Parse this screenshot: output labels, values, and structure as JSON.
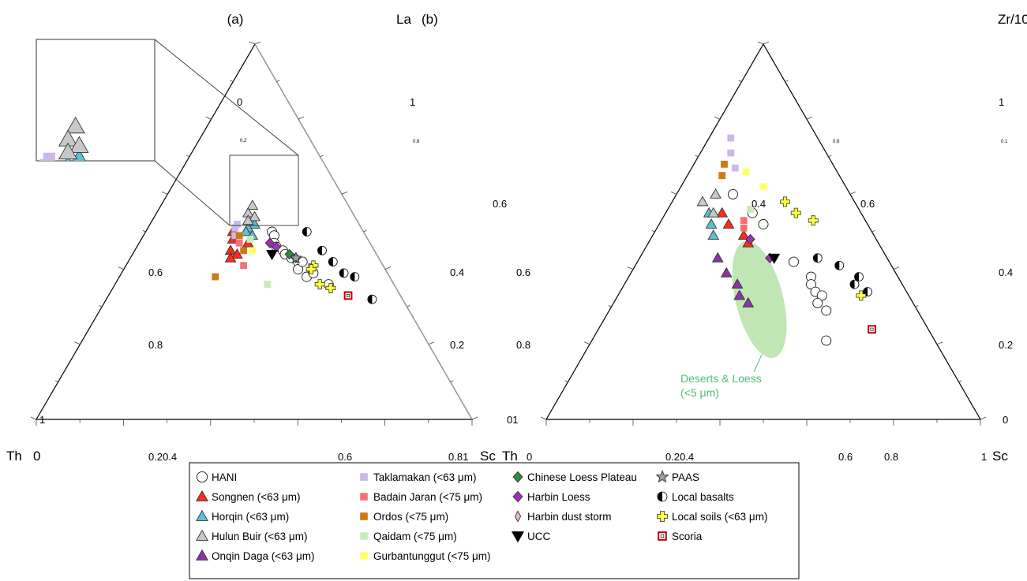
{
  "chart_data": [
    {
      "type": "scatter",
      "panel_label": "(a)",
      "ternary_axes": [
        "La",
        "Th",
        "Sc"
      ],
      "vertex_labels": {
        "top": "La",
        "left": "Th",
        "right": "Sc"
      },
      "tick_labels": {
        "bottom": [
          "0",
          "0.20.4",
          "0.6",
          "0.81"
        ],
        "left_edge": [
          "0",
          "0.6",
          "0.8",
          "1"
        ],
        "right_edge": [
          "1",
          "0.6",
          "0.4",
          "0.2"
        ],
        "small_marks": [
          "0.2",
          "0.8"
        ]
      },
      "inset": "zoom of the central cluster",
      "series": [
        {
          "name": "HANI",
          "points": [
            [
              0.5,
              0.21,
              0.29
            ],
            [
              0.49,
              0.21,
              0.3
            ],
            [
              0.47,
              0.22,
              0.31
            ],
            [
              0.46,
              0.22,
              0.32
            ],
            [
              0.45,
              0.21,
              0.34
            ],
            [
              0.44,
              0.21,
              0.35
            ],
            [
              0.43,
              0.2,
              0.37
            ],
            [
              0.42,
              0.19,
              0.39
            ],
            [
              0.4,
              0.2,
              0.4
            ],
            [
              0.38,
              0.19,
              0.43
            ],
            [
              0.36,
              0.15,
              0.49
            ],
            [
              0.42,
              0.18,
              0.4
            ],
            [
              0.39,
              0.17,
              0.44
            ]
          ]
        },
        {
          "name": "Songnen (<63 μm)",
          "points": [
            [
              0.5,
              0.3,
              0.2
            ],
            [
              0.48,
              0.31,
              0.21
            ],
            [
              0.45,
              0.33,
              0.22
            ],
            [
              0.44,
              0.32,
              0.24
            ],
            [
              0.43,
              0.34,
              0.23
            ],
            [
              0.47,
              0.28,
              0.25
            ]
          ]
        },
        {
          "name": "Horqin (<63 μm)",
          "points": [
            [
              0.52,
              0.24,
              0.24
            ],
            [
              0.51,
              0.26,
              0.23
            ],
            [
              0.5,
              0.27,
              0.23
            ],
            [
              0.49,
              0.26,
              0.25
            ]
          ]
        },
        {
          "name": "Hulun Buir (<63 μm)",
          "points": [
            [
              0.57,
              0.22,
              0.21
            ],
            [
              0.55,
              0.24,
              0.21
            ],
            [
              0.54,
              0.23,
              0.23
            ],
            [
              0.53,
              0.25,
              0.22
            ]
          ]
        },
        {
          "name": "Taklamakan (<63 μm)",
          "points": [
            [
              0.52,
              0.28,
              0.2
            ],
            [
              0.51,
              0.29,
              0.2
            ],
            [
              0.49,
              0.3,
              0.21
            ]
          ]
        },
        {
          "name": "Badain Jaran (<75 μm)",
          "points": [
            [
              0.47,
              0.3,
              0.23
            ],
            [
              0.41,
              0.32,
              0.27
            ]
          ]
        },
        {
          "name": "Ordos (<75 μm)",
          "points": [
            [
              0.49,
              0.29,
              0.22
            ],
            [
              0.45,
              0.3,
              0.25
            ],
            [
              0.38,
              0.4,
              0.22
            ]
          ]
        },
        {
          "name": "Qaidam (<75 μm)",
          "points": [
            [
              0.36,
              0.29,
              0.35
            ],
            [
              0.48,
              0.27,
              0.25
            ]
          ]
        },
        {
          "name": "Gurbantunggut (<75 μm)",
          "points": [
            [
              0.45,
              0.28,
              0.27
            ]
          ]
        },
        {
          "name": "Chinese Loess Plateau",
          "points": [
            [
              0.44,
              0.2,
              0.36
            ],
            [
              0.43,
              0.19,
              0.38
            ]
          ]
        },
        {
          "name": "Harbin Loess",
          "points": [
            [
              0.47,
              0.23,
              0.3
            ],
            [
              0.46,
              0.22,
              0.32
            ]
          ]
        },
        {
          "name": "UCC",
          "points": [
            [
              0.44,
              0.24,
              0.32
            ]
          ]
        },
        {
          "name": "PAAS",
          "points": [
            [
              0.43,
              0.19,
              0.38
            ]
          ]
        },
        {
          "name": "Local basalts",
          "points": [
            [
              0.5,
              0.13,
              0.37
            ],
            [
              0.45,
              0.12,
              0.43
            ],
            [
              0.42,
              0.11,
              0.47
            ],
            [
              0.39,
              0.1,
              0.51
            ],
            [
              0.38,
              0.08,
              0.54
            ],
            [
              0.32,
              0.07,
              0.61
            ]
          ]
        },
        {
          "name": "Local soils (<63 μm)",
          "points": [
            [
              0.41,
              0.16,
              0.43
            ],
            [
              0.4,
              0.17,
              0.43
            ],
            [
              0.36,
              0.17,
              0.47
            ],
            [
              0.35,
              0.15,
              0.5
            ]
          ]
        },
        {
          "name": "Scoria",
          "points": [
            [
              0.33,
              0.12,
              0.55
            ]
          ]
        }
      ]
    },
    {
      "type": "scatter",
      "panel_label": "(b)",
      "ternary_axes": [
        "Zr/10",
        "Th",
        "Sc"
      ],
      "vertex_labels": {
        "top": "Zr/10",
        "left": "Th",
        "right": "Sc"
      },
      "tick_labels": {
        "bottom": [
          "0",
          "0.20.4",
          "0.6",
          "0.8",
          "1"
        ],
        "left_edge": [
          "01",
          "0.6",
          "0.8"
        ],
        "right_edge": [
          "1",
          "0.6",
          "0.4",
          "0.2",
          "0"
        ],
        "inner_marks": [
          "0.4"
        ],
        "small_marks": [
          "0.8",
          "0.1"
        ]
      },
      "annotation": {
        "label": "Deserts & Loess",
        "sublabel": "(<5 μm)",
        "region_color": "#bfe6b3"
      },
      "series": [
        {
          "name": "HANI",
          "points": [
            [
              0.6,
              0.27,
              0.13
            ],
            [
              0.55,
              0.25,
              0.2
            ],
            [
              0.52,
              0.24,
              0.24
            ],
            [
              0.42,
              0.22,
              0.36
            ],
            [
              0.38,
              0.2,
              0.42
            ],
            [
              0.36,
              0.21,
              0.43
            ],
            [
              0.34,
              0.21,
              0.45
            ],
            [
              0.33,
              0.2,
              0.47
            ],
            [
              0.31,
              0.22,
              0.47
            ],
            [
              0.29,
              0.21,
              0.5
            ],
            [
              0.21,
              0.25,
              0.54
            ]
          ]
        },
        {
          "name": "Songnen (<63 μm)",
          "points": [
            [
              0.55,
              0.32,
              0.13
            ],
            [
              0.52,
              0.32,
              0.16
            ],
            [
              0.49,
              0.3,
              0.21
            ],
            [
              0.47,
              0.3,
              0.23
            ]
          ]
        },
        {
          "name": "Horqin (<63 μm)",
          "points": [
            [
              0.55,
              0.35,
              0.1
            ],
            [
              0.52,
              0.36,
              0.12
            ],
            [
              0.49,
              0.37,
              0.14
            ]
          ]
        },
        {
          "name": "Hulun Buir (<63 μm)",
          "points": [
            [
              0.58,
              0.35,
              0.07
            ],
            [
              0.6,
              0.31,
              0.09
            ],
            [
              0.55,
              0.34,
              0.11
            ]
          ]
        },
        {
          "name": "Onqin Daga (<63 μm)",
          "points": [
            [
              0.43,
              0.39,
              0.18
            ],
            [
              0.39,
              0.39,
              0.22
            ],
            [
              0.36,
              0.38,
              0.26
            ],
            [
              0.33,
              0.39,
              0.28
            ],
            [
              0.31,
              0.38,
              0.31
            ]
          ]
        },
        {
          "name": "Taklamakan (<63 μm)",
          "points": [
            [
              0.75,
              0.2,
              0.05
            ],
            [
              0.71,
              0.22,
              0.07
            ],
            [
              0.67,
              0.23,
              0.1
            ]
          ]
        },
        {
          "name": "Badain Jaran (<75 μm)",
          "points": [
            [
              0.53,
              0.28,
              0.19
            ],
            [
              0.51,
              0.29,
              0.2
            ]
          ]
        },
        {
          "name": "Ordos (<75 μm)",
          "points": [
            [
              0.68,
              0.25,
              0.07
            ],
            [
              0.65,
              0.27,
              0.08
            ]
          ]
        },
        {
          "name": "Qaidam (<75 μm)",
          "points": [
            [
              0.56,
              0.25,
              0.19
            ]
          ]
        },
        {
          "name": "Gurbantunggut (<75 μm)",
          "points": [
            [
              0.66,
              0.21,
              0.13
            ],
            [
              0.62,
              0.19,
              0.19
            ]
          ]
        },
        {
          "name": "Harbin Loess",
          "points": [
            [
              0.48,
              0.29,
              0.23
            ],
            [
              0.43,
              0.27,
              0.3
            ]
          ]
        },
        {
          "name": "UCC",
          "points": [
            [
              0.43,
              0.26,
              0.31
            ]
          ]
        },
        {
          "name": "Local basalts",
          "points": [
            [
              0.43,
              0.16,
              0.41
            ],
            [
              0.41,
              0.12,
              0.47
            ],
            [
              0.38,
              0.09,
              0.53
            ],
            [
              0.36,
              0.11,
              0.53
            ],
            [
              0.34,
              0.09,
              0.57
            ]
          ]
        },
        {
          "name": "Local soils (<63 μm)",
          "points": [
            [
              0.58,
              0.16,
              0.26
            ],
            [
              0.55,
              0.15,
              0.3
            ],
            [
              0.53,
              0.12,
              0.35
            ],
            [
              0.33,
              0.11,
              0.56
            ]
          ]
        },
        {
          "name": "Scoria",
          "points": [
            [
              0.24,
              0.13,
              0.63
            ]
          ]
        }
      ]
    }
  ],
  "legend": {
    "placement": "bottom-center",
    "items": [
      {
        "label": "HANI",
        "marker": "circle-open",
        "color": "#ffffff"
      },
      {
        "label": "Taklamakan (<63 μm)",
        "marker": "square",
        "color": "#c9b8e8"
      },
      {
        "label": "Chinese Loess Plateau",
        "marker": "diamond",
        "color": "#2e8b3e"
      },
      {
        "label": "PAAS",
        "marker": "star",
        "color": "#9e9e9e"
      },
      {
        "label": "Songnen (<63 μm)",
        "marker": "triangle",
        "color": "#ff2a1a"
      },
      {
        "label": "Badain Jaran (<75 μm)",
        "marker": "square",
        "color": "#f5707a"
      },
      {
        "label": "Harbin Loess",
        "marker": "diamond",
        "color": "#a030b8"
      },
      {
        "label": "Local basalts",
        "marker": "half-circle",
        "color": "#000000"
      },
      {
        "label": "Horqin (<63 μm)",
        "marker": "triangle-outline",
        "color": "#5bc0d4"
      },
      {
        "label": "Ordos (<75 μm)",
        "marker": "square",
        "color": "#cc7a14"
      },
      {
        "label": "Harbin dust storm",
        "marker": "diamond-outline",
        "color": "#e8b8dc"
      },
      {
        "label": "Local soils (<63 μm)",
        "marker": "cross",
        "color": "#ffff33"
      },
      {
        "label": "Hulun Buir (<63 μm)",
        "marker": "triangle-outline",
        "color": "#c8c8c8"
      },
      {
        "label": "Qaidam (<75 μm)",
        "marker": "square",
        "color": "#c8ecb8"
      },
      {
        "label": "UCC",
        "marker": "triangle-down",
        "color": "#000000"
      },
      {
        "label": "Scoria",
        "marker": "square-outline",
        "color": "#c00000"
      },
      {
        "label": "Onqin Daga (<63 μm)",
        "marker": "triangle",
        "color": "#8c34a6"
      },
      {
        "label": "Gurbantunggut (<75 μm)",
        "marker": "square",
        "color": "#ffff66"
      }
    ]
  }
}
